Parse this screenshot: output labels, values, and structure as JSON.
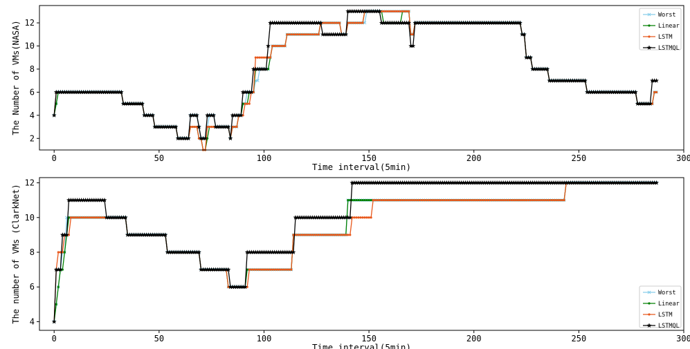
{
  "chart_data": [
    {
      "type": "line",
      "title": "",
      "xlabel": "Time interval(5min)",
      "ylabel": "The Number of VMs(NASA)",
      "xlim": [
        -7,
        300
      ],
      "ylim": [
        1,
        13.5
      ],
      "xticks": [
        0,
        50,
        100,
        150,
        200,
        250,
        300
      ],
      "yticks": [
        2,
        4,
        6,
        8,
        10,
        12
      ],
      "grid": false,
      "legend_position": "top-right",
      "series": [
        {
          "name": "Worst",
          "color": "#87ceeb",
          "marker": "x",
          "steps": [
            [
              0,
              4
            ],
            [
              1,
              5
            ],
            [
              2,
              6
            ],
            [
              33,
              5
            ],
            [
              43,
              4
            ],
            [
              48,
              3
            ],
            [
              59,
              2
            ],
            [
              65,
              4
            ],
            [
              69,
              3
            ],
            [
              70,
              2
            ],
            [
              73,
              3
            ],
            [
              74,
              4
            ],
            [
              77,
              3
            ],
            [
              84,
              2
            ],
            [
              85,
              3
            ],
            [
              88,
              4
            ],
            [
              90,
              5
            ],
            [
              92,
              6
            ],
            [
              96,
              7
            ],
            [
              98,
              8
            ],
            [
              103,
              9
            ],
            [
              104,
              10
            ],
            [
              111,
              11
            ],
            [
              127,
              12
            ],
            [
              137,
              11
            ],
            [
              140,
              12
            ],
            [
              149,
              13
            ],
            [
              170,
              11
            ],
            [
              172,
              12
            ],
            [
              223,
              11
            ],
            [
              225,
              9
            ],
            [
              228,
              8
            ],
            [
              236,
              7
            ],
            [
              254,
              6
            ],
            [
              278,
              5
            ],
            [
              286,
              6
            ]
          ]
        },
        {
          "name": "Linear",
          "color": "#007f00",
          "marker": "dot",
          "steps": [
            [
              0,
              4
            ],
            [
              1,
              5
            ],
            [
              2,
              6
            ],
            [
              33,
              5
            ],
            [
              43,
              4
            ],
            [
              48,
              3
            ],
            [
              59,
              2
            ],
            [
              65,
              3
            ],
            [
              69,
              2
            ],
            [
              71,
              1
            ],
            [
              73,
              2
            ],
            [
              74,
              3
            ],
            [
              84,
              2
            ],
            [
              85,
              3
            ],
            [
              88,
              4
            ],
            [
              90,
              5
            ],
            [
              93,
              6
            ],
            [
              96,
              8
            ],
            [
              103,
              9
            ],
            [
              104,
              10
            ],
            [
              111,
              11
            ],
            [
              127,
              12
            ],
            [
              137,
              11
            ],
            [
              140,
              12
            ],
            [
              148,
              13
            ],
            [
              157,
              12
            ],
            [
              166,
              13
            ],
            [
              170,
              11
            ],
            [
              172,
              12
            ],
            [
              223,
              11
            ],
            [
              225,
              9
            ],
            [
              228,
              8
            ],
            [
              236,
              7
            ],
            [
              254,
              6
            ],
            [
              278,
              5
            ],
            [
              286,
              6
            ]
          ]
        },
        {
          "name": "LSTM",
          "color": "#e8581c",
          "marker": "dot",
          "steps": [
            [
              0,
              4
            ],
            [
              1,
              6
            ],
            [
              33,
              5
            ],
            [
              43,
              4
            ],
            [
              48,
              3
            ],
            [
              59,
              2
            ],
            [
              65,
              3
            ],
            [
              69,
              2
            ],
            [
              71,
              1
            ],
            [
              73,
              3
            ],
            [
              84,
              2
            ],
            [
              85,
              3
            ],
            [
              88,
              4
            ],
            [
              91,
              5
            ],
            [
              94,
              6
            ],
            [
              96,
              9
            ],
            [
              104,
              10
            ],
            [
              111,
              11
            ],
            [
              127,
              12
            ],
            [
              137,
              11
            ],
            [
              140,
              12
            ],
            [
              148,
              13
            ],
            [
              157,
              13
            ],
            [
              170,
              11
            ],
            [
              172,
              12
            ],
            [
              223,
              11
            ],
            [
              225,
              9
            ],
            [
              228,
              8
            ],
            [
              236,
              7
            ],
            [
              254,
              6
            ],
            [
              278,
              5
            ],
            [
              286,
              6
            ]
          ]
        },
        {
          "name": "LSTMQL",
          "color": "#000000",
          "marker": "star",
          "steps": [
            [
              0,
              4
            ],
            [
              1,
              6
            ],
            [
              33,
              5
            ],
            [
              43,
              4
            ],
            [
              48,
              3
            ],
            [
              59,
              2
            ],
            [
              65,
              4
            ],
            [
              69,
              3
            ],
            [
              70,
              2
            ],
            [
              73,
              4
            ],
            [
              77,
              3
            ],
            [
              84,
              2
            ],
            [
              85,
              4
            ],
            [
              90,
              6
            ],
            [
              95,
              8
            ],
            [
              102,
              10
            ],
            [
              103,
              12
            ],
            [
              128,
              11
            ],
            [
              140,
              13
            ],
            [
              156,
              12
            ],
            [
              170,
              10
            ],
            [
              172,
              12
            ],
            [
              223,
              11
            ],
            [
              225,
              9
            ],
            [
              228,
              8
            ],
            [
              236,
              7
            ],
            [
              254,
              6
            ],
            [
              278,
              5
            ],
            [
              285,
              7
            ]
          ]
        }
      ],
      "x_end": 287
    },
    {
      "type": "line",
      "title": "",
      "xlabel": "Time interval(5min)",
      "ylabel": "The number of VMs (ClarkNet)",
      "xlim": [
        -7,
        300
      ],
      "ylim": [
        3.5,
        12.3
      ],
      "xticks": [
        0,
        50,
        100,
        150,
        200,
        250,
        300
      ],
      "yticks": [
        4,
        6,
        8,
        10,
        12
      ],
      "grid": false,
      "legend_position": "bottom-right",
      "series": [
        {
          "name": "Worst",
          "color": "#87ceeb",
          "marker": "x",
          "steps": [
            [
              0,
              4
            ],
            [
              1,
              5
            ],
            [
              2,
              6
            ],
            [
              3,
              7
            ],
            [
              4,
              8
            ],
            [
              6,
              10
            ],
            [
              24,
              10
            ],
            [
              35,
              9
            ],
            [
              54,
              8
            ],
            [
              70,
              7
            ],
            [
              83,
              6
            ],
            [
              92,
              7
            ],
            [
              114,
              9
            ],
            [
              140,
              11
            ],
            [
              152,
              11
            ],
            [
              244,
              12
            ]
          ]
        },
        {
          "name": "Linear",
          "color": "#007f00",
          "marker": "dot",
          "steps": [
            [
              0,
              4
            ],
            [
              1,
              5
            ],
            [
              2,
              6
            ],
            [
              3,
              7
            ],
            [
              4,
              7
            ],
            [
              5,
              8
            ],
            [
              6,
              9
            ],
            [
              7,
              10
            ],
            [
              24,
              10
            ],
            [
              35,
              9
            ],
            [
              54,
              8
            ],
            [
              70,
              7
            ],
            [
              83,
              6
            ],
            [
              92,
              7
            ],
            [
              114,
              9
            ],
            [
              140,
              11
            ],
            [
              152,
              11
            ],
            [
              244,
              12
            ]
          ]
        },
        {
          "name": "LSTM",
          "color": "#e8581c",
          "marker": "dot",
          "steps": [
            [
              0,
              4
            ],
            [
              1,
              7
            ],
            [
              2,
              8
            ],
            [
              5,
              9
            ],
            [
              8,
              10
            ],
            [
              24,
              10
            ],
            [
              35,
              9
            ],
            [
              54,
              8
            ],
            [
              70,
              7
            ],
            [
              83,
              6
            ],
            [
              93,
              7
            ],
            [
              114,
              9
            ],
            [
              142,
              10
            ],
            [
              152,
              11
            ],
            [
              244,
              12
            ]
          ]
        },
        {
          "name": "LSTMQL",
          "color": "#000000",
          "marker": "star",
          "steps": [
            [
              0,
              4
            ],
            [
              1,
              7
            ],
            [
              4,
              9
            ],
            [
              7,
              11
            ],
            [
              25,
              10
            ],
            [
              35,
              9
            ],
            [
              54,
              8
            ],
            [
              70,
              7
            ],
            [
              84,
              6
            ],
            [
              92,
              8
            ],
            [
              115,
              10
            ],
            [
              142,
              12
            ]
          ]
        }
      ],
      "x_end": 287
    }
  ]
}
